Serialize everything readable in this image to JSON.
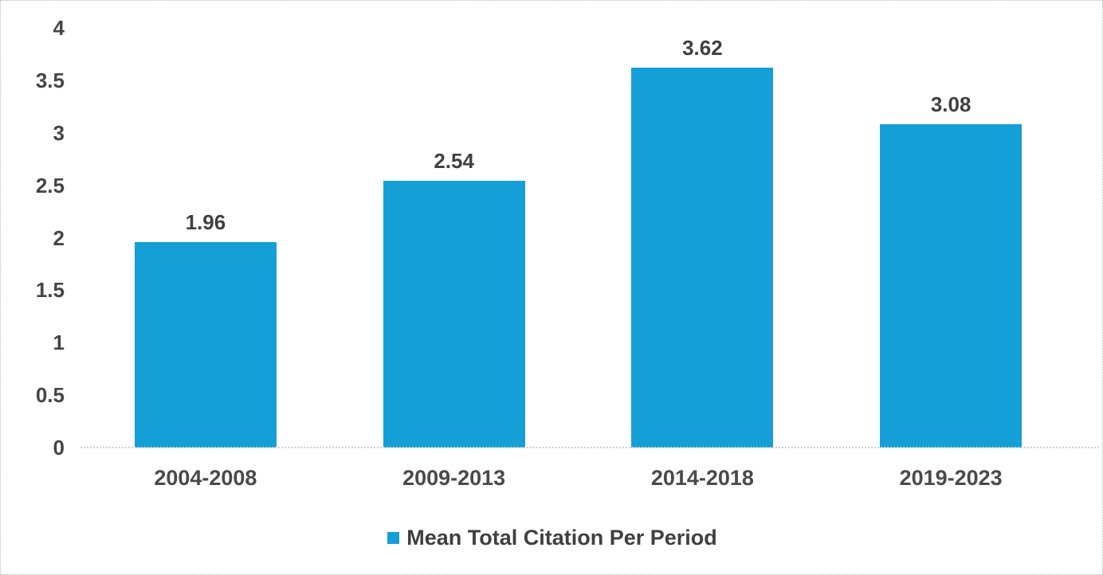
{
  "chart_data": {
    "type": "bar",
    "categories": [
      "2004-2008",
      "2009-2013",
      "2014-2018",
      "2019-2023"
    ],
    "values": [
      1.96,
      2.54,
      3.62,
      3.08
    ],
    "value_labels": [
      "1.96",
      "2.54",
      "3.62",
      "3.08"
    ],
    "title": "",
    "xlabel": "",
    "ylabel": "",
    "ylim": [
      0,
      4
    ],
    "ytick_step": 0.5,
    "ytick_labels": [
      "0",
      "0.5",
      "1",
      "1.5",
      "2",
      "2.5",
      "3",
      "3.5",
      "4"
    ],
    "grid": false,
    "bar_color": "#149fd6",
    "legend": {
      "position": "bottom",
      "entries": [
        {
          "label": "Mean Total Citation Per Period",
          "color": "#149fd6"
        }
      ]
    }
  },
  "colors": {
    "bar": "#149fd6",
    "label_text": "#404040",
    "axis_text": "#4a4a4a",
    "baseline": "#cfcfcf",
    "frame_border": "#b9b9b9",
    "background": "#ffffff"
  }
}
